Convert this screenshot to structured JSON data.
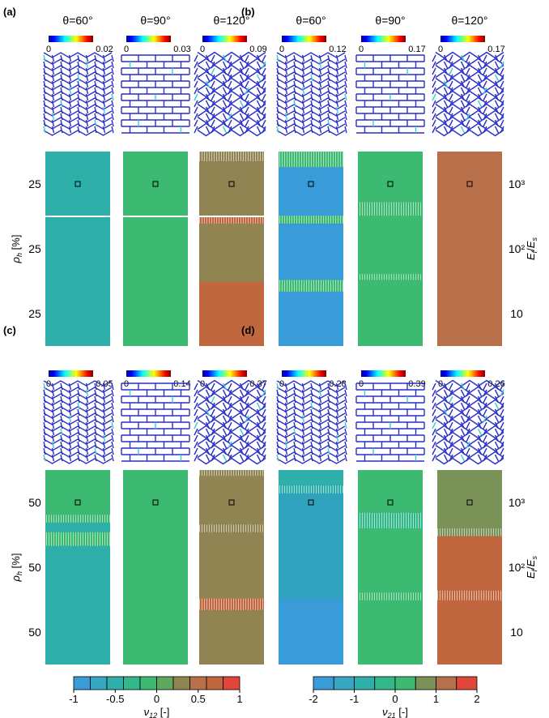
{
  "panels": [
    {
      "label": "(a)",
      "thetas": [
        "θ=60°",
        "θ=90°",
        "θ=120°"
      ],
      "cb_max": [
        "0.02",
        "0.03",
        "0.09"
      ],
      "cb_min": "0",
      "row_labels": [
        "25",
        "25",
        "25"
      ],
      "columns": [
        {
          "base": "#2fafaa",
          "blocks": []
        },
        {
          "base": "#3dba71",
          "blocks": []
        },
        {
          "base": "#8f8452",
          "blocks": [
            {
              "from": 0.0,
              "to": 0.05,
              "color": "#8f8452",
              "hatch": true
            },
            {
              "from": 0.33,
              "to": 0.37,
              "color": "#c0673f",
              "hatch": true
            },
            {
              "from": 0.67,
              "to": 1.0,
              "color": "#c0673f"
            }
          ]
        }
      ]
    },
    {
      "label": "(b)",
      "thetas": [
        "θ=60°",
        "θ=90°",
        "θ=120°"
      ],
      "cb_max": [
        "0.12",
        "0.17",
        "0.17"
      ],
      "cb_min": "0",
      "row_labels": [
        "10³",
        "10²",
        "10"
      ],
      "columns": [
        {
          "base": "#3a9bd9",
          "blocks": [
            {
              "from": 0.0,
              "to": 0.08,
              "color": "#3dba71",
              "hatch": true
            },
            {
              "from": 0.33,
              "to": 0.37,
              "color": "#3dba71",
              "hatch": true
            },
            {
              "from": 0.66,
              "to": 0.72,
              "color": "#3dba71",
              "hatch": true
            }
          ]
        },
        {
          "base": "#3dba71",
          "blocks": [
            {
              "from": 0.26,
              "to": 0.33,
              "color": "#3dba71",
              "hatch": true
            },
            {
              "from": 0.63,
              "to": 0.66,
              "color": "#3dba71",
              "hatch": true
            }
          ]
        },
        {
          "base": "#b7704a",
          "blocks": []
        }
      ]
    },
    {
      "label": "(c)",
      "thetas": [
        "θ=60°",
        "θ=90°",
        "θ=120°"
      ],
      "cb_max": [
        "0.05",
        "0.14",
        "0.37"
      ],
      "cb_min": "0",
      "row_labels": [
        "50",
        "50",
        "50"
      ],
      "columns": [
        {
          "base": "#2fafaa",
          "blocks": [
            {
              "from": 0.0,
              "to": 0.23,
              "color": "#3dba71"
            },
            {
              "from": 0.23,
              "to": 0.27,
              "color": "#3dba71",
              "hatch": true
            },
            {
              "from": 0.32,
              "to": 0.39,
              "color": "#3dba71",
              "hatch": true
            }
          ]
        },
        {
          "base": "#3dba71",
          "blocks": []
        },
        {
          "base": "#8f8452",
          "blocks": [
            {
              "from": 0.0,
              "to": 0.03,
              "color": "#8f8452",
              "hatch": true
            },
            {
              "from": 0.28,
              "to": 0.32,
              "color": "#8f8452",
              "hatch": true
            },
            {
              "from": 0.66,
              "to": 0.72,
              "color": "#c0673f",
              "hatch": true
            }
          ]
        }
      ]
    },
    {
      "label": "(d)",
      "thetas": [
        "θ=60°",
        "θ=90°",
        "θ=120°"
      ],
      "cb_max": [
        "0.28",
        "0.39",
        "0.26"
      ],
      "cb_min": "0",
      "row_labels": [
        "10³",
        "10²",
        "10"
      ],
      "columns": [
        {
          "base": "#2fa3be",
          "blocks": [
            {
              "from": 0.0,
              "to": 0.08,
              "color": "#2fafaa"
            },
            {
              "from": 0.08,
              "to": 0.12,
              "color": "#2fafaa",
              "hatch": true
            },
            {
              "from": 0.66,
              "to": 1.0,
              "color": "#3a9bd9"
            }
          ]
        },
        {
          "base": "#3dba71",
          "blocks": [
            {
              "from": 0.22,
              "to": 0.3,
              "color": "#33b88a",
              "hatch": true
            },
            {
              "from": 0.63,
              "to": 0.67,
              "color": "#3dba71",
              "hatch": true
            }
          ]
        },
        {
          "base": "#c0673f",
          "blocks": [
            {
              "from": 0.0,
              "to": 0.33,
              "color": "#7a9157"
            },
            {
              "from": 0.3,
              "to": 0.34,
              "color": "#7a9157",
              "hatch": true
            },
            {
              "from": 0.62,
              "to": 0.67,
              "color": "#c0673f",
              "hatch": true
            }
          ]
        }
      ]
    }
  ],
  "axis": {
    "rho_label": "ρh [%]",
    "rho_main": "ρ",
    "rho_sub": "h",
    "rho_unit": " [%]",
    "ratio_label": "Ef/Es",
    "ratio_main_1": "E",
    "ratio_sub_1": "f",
    "ratio_mid": "/",
    "ratio_main_2": "E",
    "ratio_sub_2": "s"
  },
  "legend_nu12": {
    "ticks": [
      "-1",
      "-0.5",
      "0",
      "0.5",
      "1"
    ],
    "label": "ν12 [-]",
    "label_main": "ν",
    "label_sub": "12",
    "label_unit": " [-]",
    "colors": [
      "#3a9bd9",
      "#35a6c4",
      "#2fafaa",
      "#33b88a",
      "#3dba71",
      "#5fa860",
      "#8f8452",
      "#b7704a",
      "#c0673f",
      "#e0473a"
    ]
  },
  "legend_nu21": {
    "ticks": [
      "-2",
      "-1",
      "0",
      "1",
      "2"
    ],
    "label": "ν21 [-]",
    "label_main": "ν",
    "label_sub": "21",
    "label_unit": " [-]",
    "colors": [
      "#3a9bd9",
      "#35a6c4",
      "#2fafaa",
      "#33b88a",
      "#3dba71",
      "#7a9157",
      "#b7704a",
      "#e0473a"
    ]
  },
  "colors": {
    "lattice_line": "#2a2fc8",
    "highlight": "#38d0c8"
  }
}
